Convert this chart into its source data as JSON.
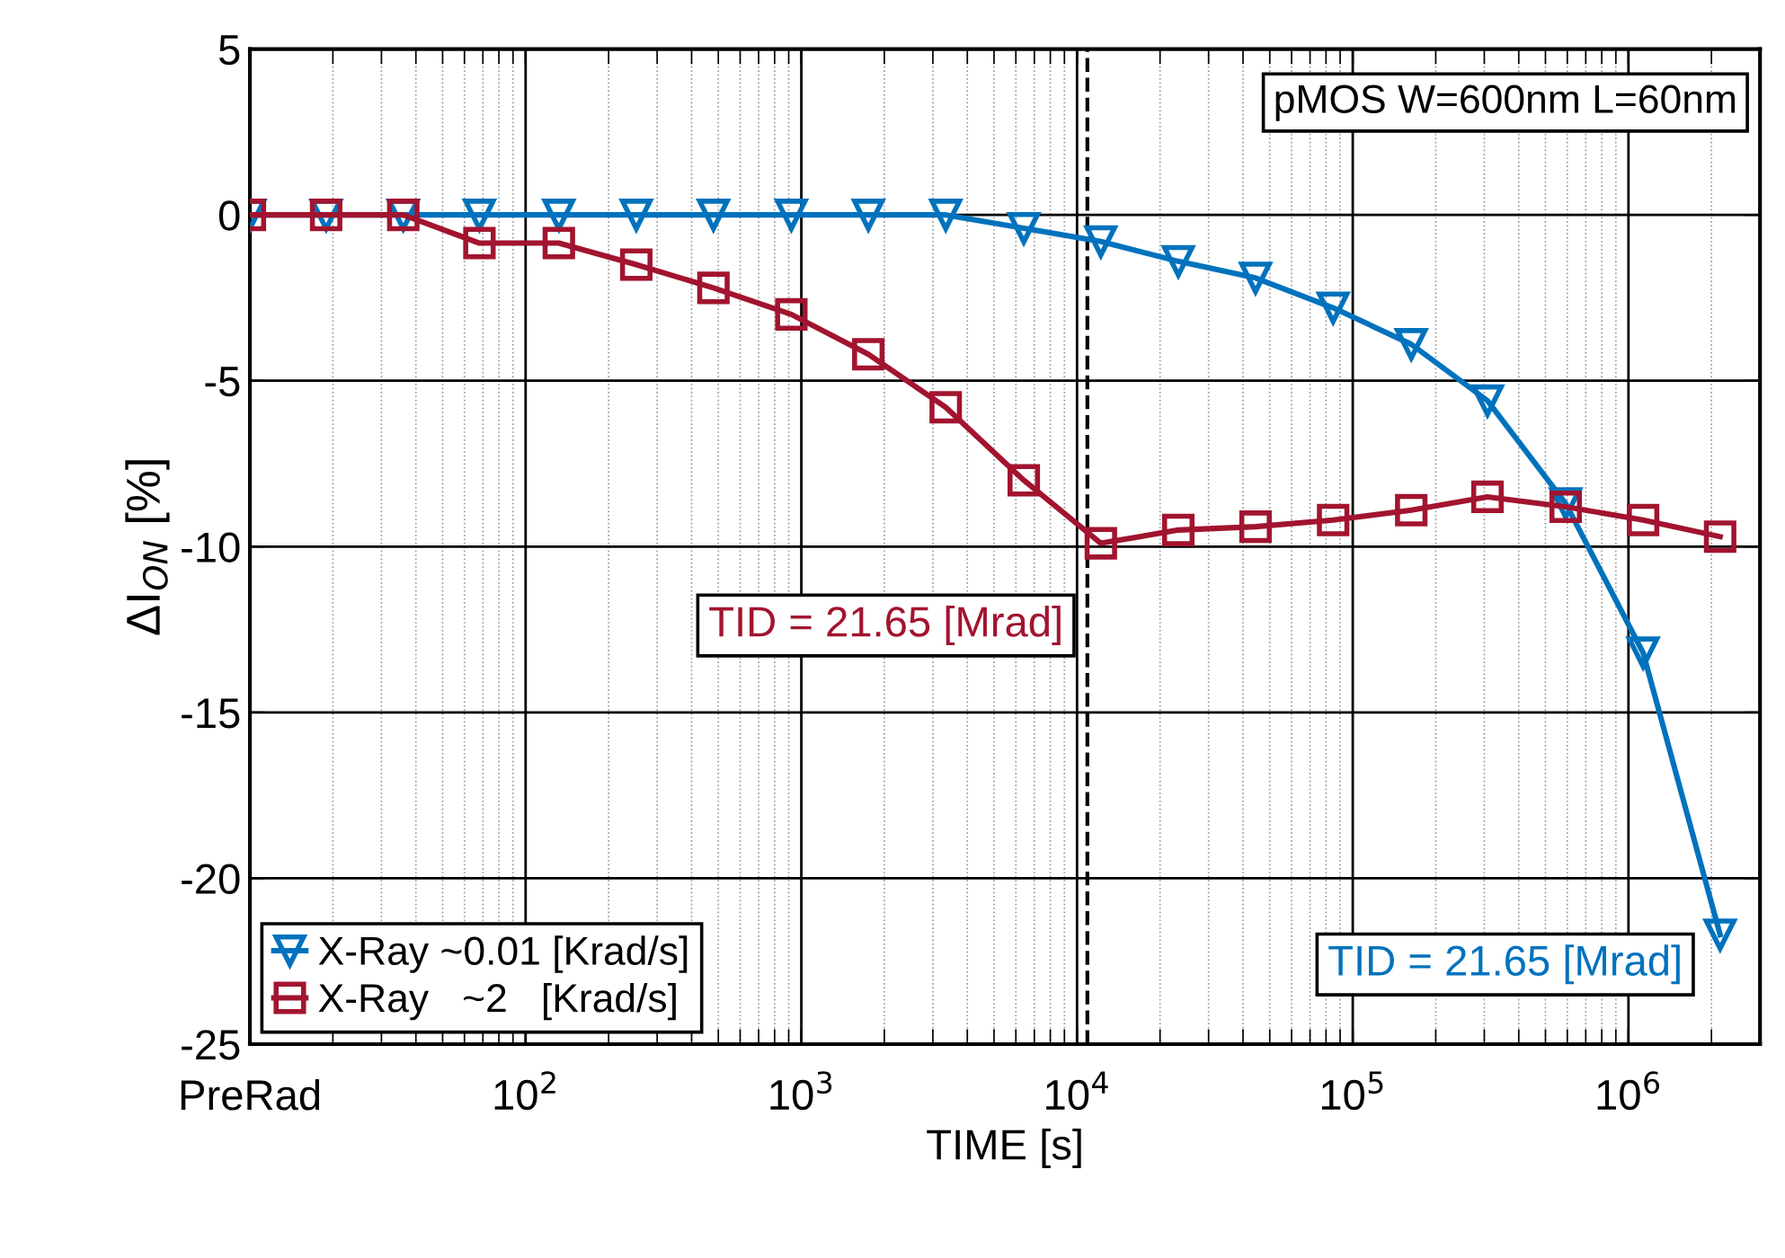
{
  "chart_data": {
    "type": "line",
    "xlabel": "TIME [s]",
    "ylabel": "ΔI$_{ON}$ [%]",
    "x": [
      10,
      18.9,
      36,
      68,
      132,
      252,
      480,
      920,
      1750,
      3340,
      6410,
      12200,
      23300,
      44400,
      84900,
      163000,
      308000,
      592000,
      1130000,
      2150000
    ],
    "series": [
      {
        "name": "X-Ray ~0.01 [Krad/s]",
        "color": "#0072bd",
        "marker": "triangle",
        "values": [
          0,
          0,
          0,
          0,
          0,
          0,
          0,
          0,
          0,
          0,
          -0.4,
          -0.8,
          -1.4,
          -1.9,
          -2.8,
          -3.9,
          -5.6,
          -8.7,
          -13.2,
          -21.7
        ]
      },
      {
        "name": "X-Ray   ~2   [Krad/s]",
        "color": "#a2142f",
        "marker": "square",
        "values": [
          0,
          0,
          0,
          -0.85,
          -0.85,
          -1.5,
          -2.2,
          -3.0,
          -4.2,
          -5.8,
          -8.0,
          -9.9,
          -9.5,
          -9.4,
          -9.2,
          -8.9,
          -8.5,
          -8.8,
          -9.2,
          -9.7
        ]
      }
    ],
    "log": "x",
    "xlim": [
      10,
      3000000
    ],
    "xticks": [
      {
        "value": 10,
        "label": "PreRad"
      },
      {
        "value": 100,
        "label": "10$^{2}$"
      },
      {
        "value": 1000,
        "label": "10$^{3}$"
      },
      {
        "value": 10000,
        "label": "10$^{4}$"
      },
      {
        "value": 100000,
        "label": "10$^{5}$"
      },
      {
        "value": 1000000,
        "label": "10$^{6}$"
      }
    ],
    "ylim": [
      -25,
      5
    ],
    "yticks": [
      -25,
      -20,
      -15,
      -10,
      -5,
      0,
      5
    ],
    "ref_lines": [
      {
        "axis": "x",
        "value": 10900,
        "color": "#000000",
        "line_style": "dashed"
      }
    ],
    "annotations": [
      "pMOS W=600nm L=60nm",
      {
        "text": "TID = 21.65 [Mrad]",
        "x": 12200,
        "y": -9.9
      },
      {
        "text": "TID = 21.65 [Mrad]",
        "x": 2150000,
        "y": -21.7
      }
    ],
    "grid": true,
    "legend": "bottom left",
    "line_style": "solid"
  }
}
